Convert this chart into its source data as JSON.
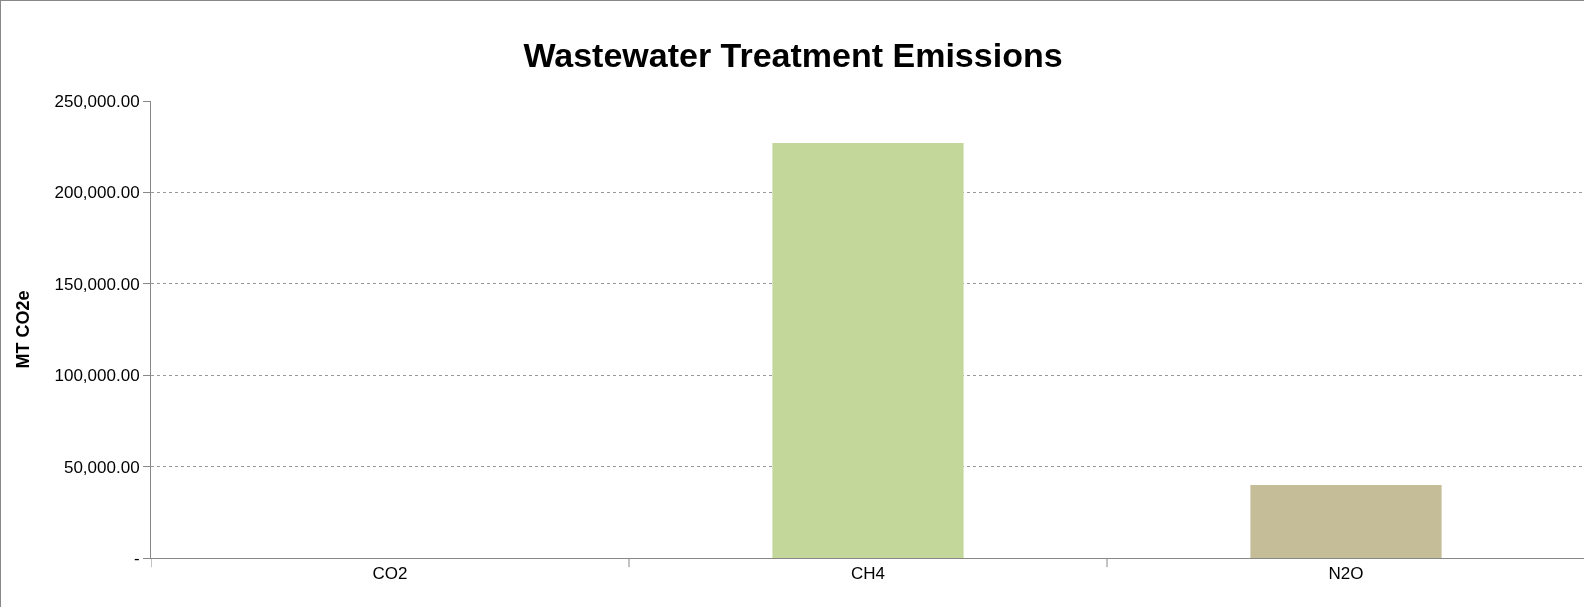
{
  "chart_data": {
    "type": "bar",
    "title": "Wastewater Treatment Emissions",
    "ylabel": "MT CO2e",
    "categories": [
      "CO2",
      "CH4",
      "N2O"
    ],
    "values": [
      0,
      227000,
      40000
    ],
    "colors": [
      "#c0504d",
      "#c4d79b",
      "#c4bd97"
    ],
    "ylim": [
      0,
      250000
    ],
    "yticks": [
      {
        "value": 0,
        "label": "-"
      },
      {
        "value": 50000,
        "label": "50,000.00"
      },
      {
        "value": 100000,
        "label": "100,000.00"
      },
      {
        "value": 150000,
        "label": "150,000.00"
      },
      {
        "value": 200000,
        "label": "200,000.00"
      },
      {
        "value": 250000,
        "label": "250,000.00"
      }
    ],
    "grid": "y"
  }
}
